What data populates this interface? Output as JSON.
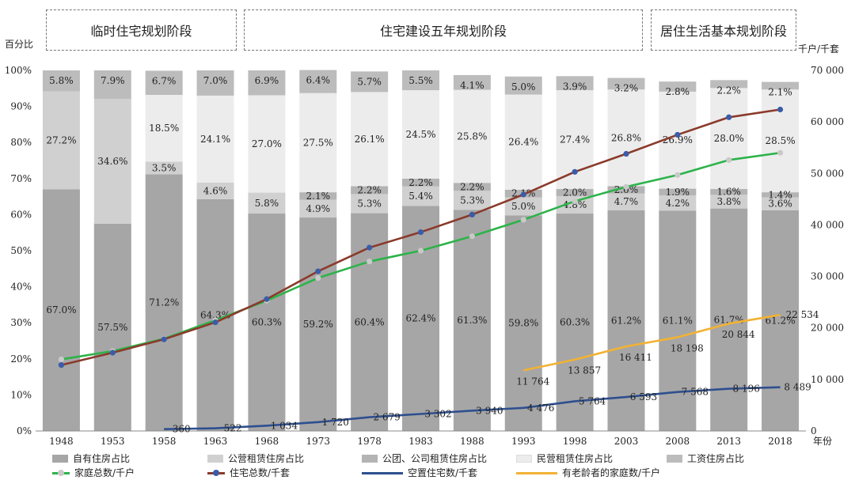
{
  "phases": [
    {
      "label": "临时住宅规划阶段"
    },
    {
      "label": "住宅建设五年规划阶段"
    },
    {
      "label": "居住生活基本规划阶段"
    }
  ],
  "axes": {
    "left_title": "百分比",
    "right_title": "千户/千套",
    "x_unit": "年份"
  },
  "chart_data": {
    "type": "bar",
    "stacked": true,
    "categories": [
      "1948",
      "1953",
      "1958",
      "1963",
      "1968",
      "1973",
      "1978",
      "1983",
      "1988",
      "1993",
      "1998",
      "2003",
      "2008",
      "2013",
      "2018"
    ],
    "y_left": {
      "min": 0,
      "max": 100,
      "unit": "%",
      "ticks": [
        "0%",
        "10%",
        "20%",
        "30%",
        "40%",
        "50%",
        "60%",
        "70%",
        "80%",
        "90%",
        "100%"
      ]
    },
    "y_right": {
      "min": 0,
      "max": 70000,
      "ticks": [
        "0",
        "10 000",
        "20 000",
        "30 000",
        "40 000",
        "50 000",
        "60 000",
        "70 000"
      ]
    },
    "bar_series": [
      {
        "name": "自有住房占比",
        "color": "#a6a6a6",
        "values": [
          67.0,
          57.5,
          71.2,
          64.3,
          60.3,
          59.2,
          60.4,
          62.4,
          61.3,
          59.8,
          60.3,
          61.2,
          61.1,
          61.7,
          61.2
        ],
        "labels": [
          "67.0%",
          "57.5%",
          "71.2%",
          "64.3%",
          "60.3%",
          "59.2%",
          "60.4%",
          "62.4%",
          "61.3%",
          "59.8%",
          "60.3%",
          "61.2%",
          "61.1%",
          "61.7%",
          "61.2%"
        ]
      },
      {
        "name": "公营租赁住房占比",
        "color": "#d0d0d0",
        "values": [
          27.2,
          34.6,
          3.5,
          4.6,
          5.8,
          4.9,
          5.3,
          5.4,
          5.3,
          5.0,
          4.8,
          4.7,
          4.2,
          3.8,
          3.6
        ],
        "labels": [
          "27.2%",
          "34.6%",
          "3.5%",
          "4.6%",
          "5.8%",
          "4.9%",
          "5.3%",
          "5.4%",
          "5.3%",
          "5.0%",
          "4.8%",
          "4.7%",
          "4.2%",
          "3.8%",
          "3.6%"
        ]
      },
      {
        "name": "公团、公司租赁住房占比",
        "color": "#b4b4b4",
        "values": [
          0,
          0,
          0,
          0,
          0,
          2.1,
          2.2,
          2.2,
          2.2,
          2.1,
          2.0,
          2.0,
          1.9,
          1.6,
          1.4
        ],
        "labels": [
          "",
          "",
          "",
          "",
          "",
          "2.1%",
          "2.2%",
          "2.2%",
          "2.2%",
          "2.1%",
          "2.0%",
          "2.0%",
          "1.9%",
          "1.6%",
          "1.4%"
        ]
      },
      {
        "name": "民营租赁住房占比",
        "color": "#ececec",
        "values": [
          0,
          0,
          18.5,
          24.1,
          27.0,
          27.5,
          26.1,
          24.5,
          25.8,
          26.4,
          27.4,
          26.8,
          26.9,
          28.0,
          28.5
        ],
        "labels": [
          "",
          "",
          "18.5%",
          "24.1%",
          "27.0%",
          "27.5%",
          "26.1%",
          "24.5%",
          "25.8%",
          "26.4%",
          "27.4%",
          "26.8%",
          "26.9%",
          "28.0%",
          "28.5%"
        ]
      },
      {
        "name": "工资住房占比",
        "color": "#bcbcbc",
        "values": [
          5.8,
          7.9,
          6.7,
          7.0,
          6.9,
          6.4,
          5.7,
          5.5,
          4.1,
          5.0,
          3.9,
          3.2,
          2.8,
          2.2,
          2.1
        ],
        "labels": [
          "5.8%",
          "7.9%",
          "6.7%",
          "7.0%",
          "6.9%",
          "6.4%",
          "5.7%",
          "5.5%",
          "4.1%",
          "5.0%",
          "3.9%",
          "3.2%",
          "2.8%",
          "2.2%",
          "2.1%"
        ]
      }
    ],
    "line_series": [
      {
        "name": "家庭总数/千户",
        "color": "#2db34a",
        "marker": "#c9c9c9",
        "values": [
          13900,
          15500,
          17900,
          21500,
          25300,
          29700,
          32900,
          35000,
          37800,
          41000,
          44600,
          47400,
          49700,
          52600,
          54000
        ],
        "labels": []
      },
      {
        "name": "住宅总数/千套",
        "color": "#8b3a2b",
        "marker": "#3a5ca8",
        "values": [
          12800,
          15200,
          17800,
          21100,
          25600,
          31000,
          35600,
          38600,
          42000,
          45900,
          50300,
          53800,
          57500,
          60900,
          62400
        ],
        "labels": []
      },
      {
        "name": "空置住宅数/千套",
        "color": "#2e4f8f",
        "marker": null,
        "values": [
          null,
          null,
          360,
          522,
          1034,
          1720,
          2679,
          3302,
          3940,
          4476,
          5764,
          6593,
          7568,
          8196,
          8489
        ],
        "labels": [
          "",
          "",
          "360",
          "522",
          "1 034",
          "1 720",
          "2 679",
          "3 302",
          "3 940",
          "4 476",
          "5 764",
          "6 593",
          "7 568",
          "8 196",
          "8 489"
        ]
      },
      {
        "name": "有老龄者的家庭数/千户",
        "color": "#f2b233",
        "marker": null,
        "values": [
          null,
          null,
          null,
          null,
          null,
          null,
          null,
          null,
          null,
          11764,
          13857,
          16411,
          18198,
          20844,
          22534
        ],
        "labels": [
          "",
          "",
          "",
          "",
          "",
          "",
          "",
          "",
          "",
          "11 764",
          "13 857",
          "16 411",
          "18 198",
          "20 844",
          "22 534"
        ]
      }
    ]
  }
}
